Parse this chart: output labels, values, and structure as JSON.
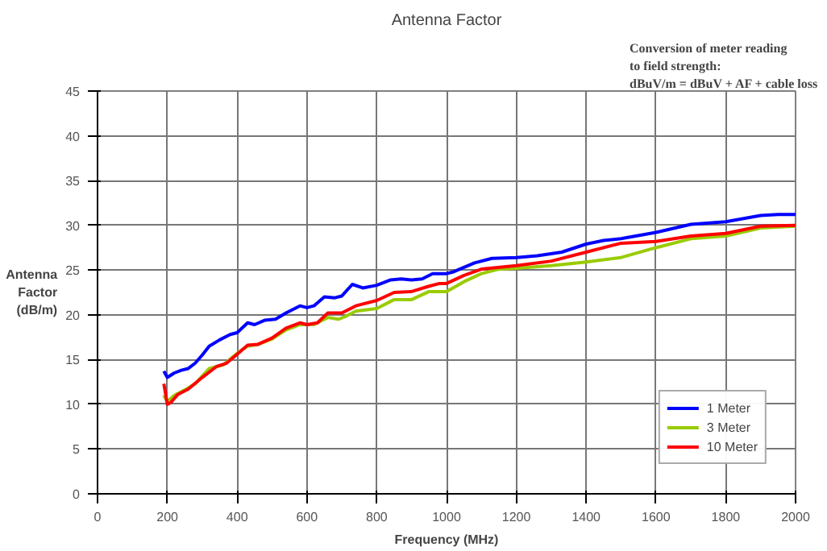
{
  "chart_data": {
    "type": "line",
    "title": "Antenna Factor",
    "xlabel": "Frequency (MHz)",
    "ylabel": "Antenna Factor (dB/m)",
    "annotations": [
      "Conversion of meter reading",
      "to field strength:",
      "dBuV/m = dBuV + AF + cable loss"
    ],
    "xlim": [
      0,
      2000
    ],
    "ylim": [
      0,
      45
    ],
    "xticks": [
      0,
      200,
      400,
      600,
      800,
      1000,
      1200,
      1400,
      1600,
      1800,
      2000
    ],
    "yticks": [
      0,
      5,
      10,
      15,
      20,
      25,
      30,
      35,
      40,
      45
    ],
    "grid": true,
    "legend": "bottom right",
    "marker": "none",
    "line_style": "solid",
    "series": [
      {
        "name": "1 Meter",
        "color": "#0000ff",
        "x": [
          190,
          200,
          220,
          240,
          260,
          280,
          300,
          320,
          350,
          380,
          400,
          430,
          450,
          480,
          510,
          540,
          580,
          600,
          620,
          650,
          680,
          700,
          730,
          760,
          800,
          840,
          870,
          900,
          930,
          960,
          1000,
          1020,
          1080,
          1130,
          1200,
          1260,
          1330,
          1400,
          1450,
          1500,
          1600,
          1700,
          1800,
          1900,
          1950,
          2000
        ],
        "values": [
          13.7,
          13.0,
          13.5,
          13.8,
          14.0,
          14.6,
          15.5,
          16.5,
          17.2,
          17.8,
          18.0,
          19.1,
          18.9,
          19.4,
          19.5,
          20.2,
          21.0,
          20.8,
          21.0,
          22.0,
          21.9,
          22.1,
          23.4,
          23.0,
          23.3,
          23.9,
          24.0,
          23.9,
          24.0,
          24.6,
          24.6,
          24.8,
          25.8,
          26.3,
          26.4,
          26.6,
          27.0,
          27.9,
          28.3,
          28.5,
          29.2,
          30.1,
          30.4,
          31.1,
          31.2,
          31.2
        ]
      },
      {
        "name": "3 Meter",
        "color": "#99cc00",
        "x": [
          190,
          200,
          220,
          250,
          280,
          320,
          360,
          400,
          430,
          460,
          500,
          540,
          580,
          620,
          640,
          660,
          690,
          710,
          740,
          800,
          850,
          900,
          950,
          1000,
          1050,
          1100,
          1150,
          1200,
          1300,
          1400,
          1500,
          1600,
          1700,
          1800,
          1900,
          2000
        ],
        "values": [
          11.0,
          10.3,
          11.0,
          11.6,
          12.3,
          14.0,
          14.4,
          15.7,
          16.5,
          16.7,
          17.3,
          18.3,
          18.9,
          18.9,
          19.3,
          19.7,
          19.5,
          19.8,
          20.4,
          20.7,
          21.7,
          21.7,
          22.6,
          22.6,
          23.7,
          24.6,
          25.1,
          25.2,
          25.5,
          25.9,
          26.4,
          27.5,
          28.5,
          28.8,
          29.7,
          29.9
        ]
      },
      {
        "name": "10 Meter",
        "color": "#ff0000",
        "x": [
          190,
          200,
          210,
          230,
          260,
          300,
          340,
          370,
          400,
          430,
          460,
          500,
          540,
          580,
          600,
          630,
          660,
          700,
          740,
          800,
          850,
          900,
          950,
          980,
          1000,
          1050,
          1100,
          1200,
          1300,
          1400,
          1500,
          1600,
          1700,
          1800,
          1900,
          2000
        ],
        "values": [
          12.3,
          10.0,
          10.2,
          11.1,
          11.7,
          13.0,
          14.2,
          14.6,
          15.6,
          16.6,
          16.7,
          17.4,
          18.5,
          19.1,
          18.9,
          19.1,
          20.2,
          20.2,
          21.0,
          21.6,
          22.5,
          22.6,
          23.2,
          23.5,
          23.5,
          24.4,
          25.1,
          25.5,
          26.0,
          27.0,
          28.0,
          28.2,
          28.8,
          29.1,
          29.9,
          30.0
        ]
      }
    ]
  }
}
